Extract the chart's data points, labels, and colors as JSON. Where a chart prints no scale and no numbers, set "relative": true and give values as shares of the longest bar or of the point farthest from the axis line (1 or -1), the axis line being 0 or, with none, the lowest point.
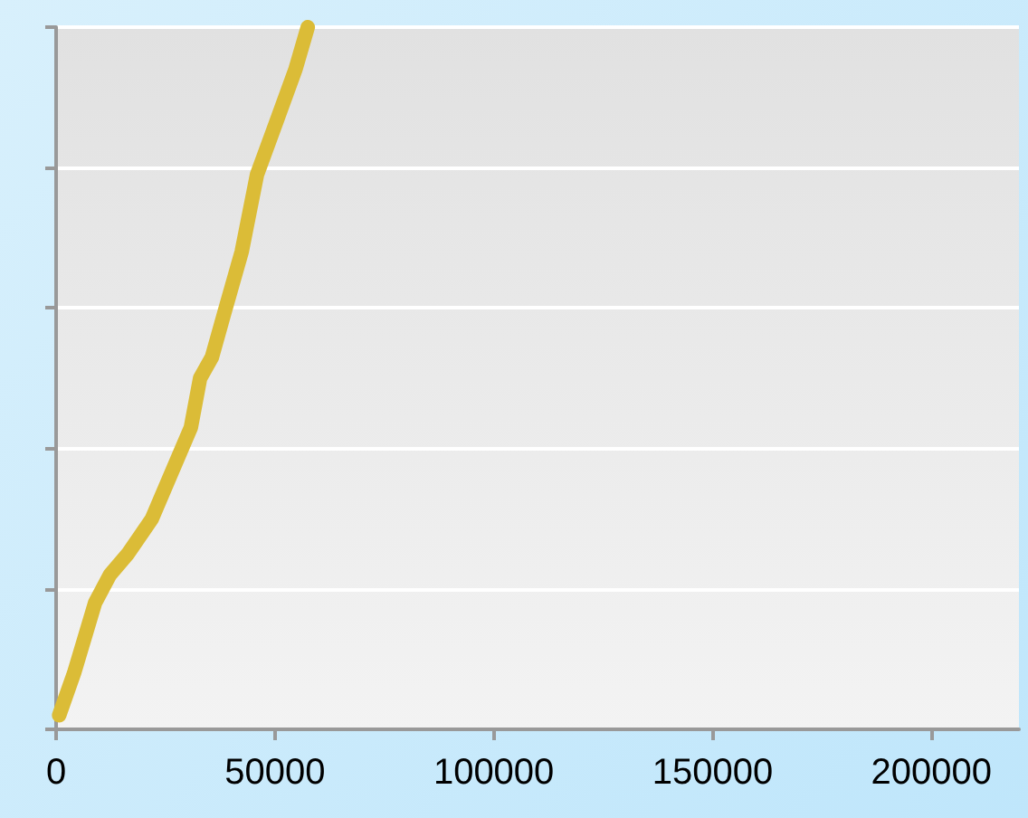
{
  "chart_data": {
    "type": "line",
    "relative": true,
    "x": [
      700,
      4100,
      8900,
      12300,
      16400,
      21900,
      26000,
      30800,
      32900,
      35600,
      38300,
      42400,
      45900,
      50600,
      54700,
      57500
    ],
    "series": [
      {
        "color": "#dbbc37",
        "values": [
          0.02,
          0.08,
          0.18,
          0.22,
          0.25,
          0.3,
          0.36,
          0.43,
          0.5,
          0.53,
          0.59,
          0.68,
          0.79,
          0.87,
          0.94,
          1
        ]
      }
    ],
    "xlim": [
      0,
      220000
    ],
    "xticks": [
      0,
      50000,
      100000,
      150000,
      200000
    ],
    "grid": "y",
    "tick_labels": "x",
    "line_style": "solid"
  }
}
